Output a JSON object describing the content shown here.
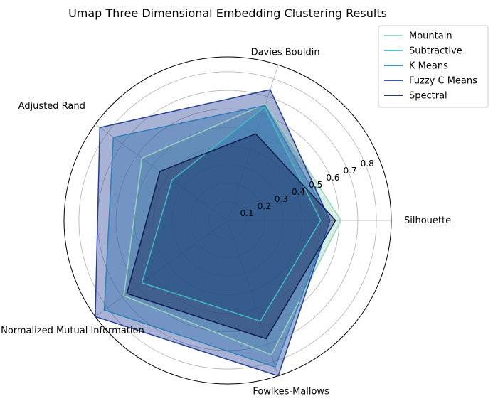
{
  "chart_data": {
    "type": "radar",
    "title": "Umap Three Dimensional Embedding Clustering Results",
    "axes": [
      "Silhouette",
      "Davies Bouldin",
      "Adjusted Rand",
      "Normalized Mutual Information",
      "Fowlkes-Mallows"
    ],
    "r_ticks": [
      0.1,
      0.2,
      0.3,
      0.4,
      0.5,
      0.6,
      0.7,
      0.8
    ],
    "r_max": 0.88,
    "grid": true,
    "legend_position": "top-right",
    "series": [
      {
        "name": "Mountain",
        "color": "#96d3b8",
        "values": [
          0.61,
          0.66,
          0.57,
          0.69,
          0.76
        ]
      },
      {
        "name": "Subtractive",
        "color": "#3fbac6",
        "values": [
          0.5,
          0.64,
          0.37,
          0.57,
          0.57
        ]
      },
      {
        "name": "K Means",
        "color": "#2a82b8",
        "values": [
          0.55,
          0.65,
          0.76,
          0.82,
          0.83
        ]
      },
      {
        "name": "Fuzzy C Means",
        "color": "#233f96",
        "values": [
          0.55,
          0.74,
          0.85,
          0.88,
          0.88
        ]
      },
      {
        "name": "Spectral",
        "color": "#0f1f4d",
        "values": [
          0.58,
          0.49,
          0.45,
          0.67,
          0.67
        ]
      }
    ]
  }
}
